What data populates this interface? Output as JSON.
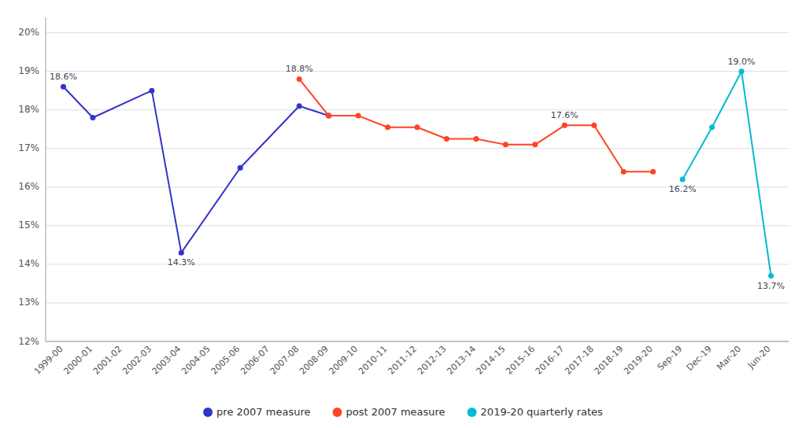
{
  "chart_data": {
    "type": "line",
    "categories": [
      "1999-00",
      "2000-01",
      "2001-02",
      "2002-03",
      "2003-04",
      "2004-05",
      "2005-06",
      "2006-07",
      "2007-08",
      "2008-09",
      "2009-10",
      "2010-11",
      "2011-12",
      "2012-13",
      "2013-14",
      "2014-15",
      "2015-16",
      "2016-17",
      "2017-18",
      "2018-19",
      "2019-20",
      "Sep-19",
      "Dec-19",
      "Mar-20",
      "Jun-20"
    ],
    "series": [
      {
        "name": "pre 2007 measure",
        "color": "#3333cc",
        "marker": "circle",
        "x": [
          "1999-00",
          "2000-01",
          "2002-03",
          "2003-04",
          "2005-06",
          "2007-08",
          "2008-09"
        ],
        "values": [
          18.6,
          17.8,
          18.5,
          14.3,
          16.5,
          18.1,
          17.85
        ]
      },
      {
        "name": "post 2007 measure",
        "color": "#ff4422",
        "marker": "circle",
        "x": [
          "2007-08",
          "2008-09",
          "2009-10",
          "2010-11",
          "2011-12",
          "2012-13",
          "2013-14",
          "2014-15",
          "2015-16",
          "2016-17",
          "2017-18",
          "2018-19",
          "2019-20"
        ],
        "values": [
          18.8,
          17.85,
          17.85,
          17.55,
          17.55,
          17.25,
          17.25,
          17.1,
          17.1,
          17.6,
          17.6,
          16.4,
          16.4
        ]
      },
      {
        "name": "2019-20 quarterly rates",
        "color": "#00bcd4",
        "marker": "circle",
        "x": [
          "Sep-19",
          "Dec-19",
          "Mar-20",
          "Jun-20"
        ],
        "values": [
          16.2,
          17.55,
          19.0,
          13.7
        ]
      }
    ],
    "ylim": [
      12.0,
      20.4
    ],
    "yticks": [
      {
        "value": 12,
        "label": "12%"
      },
      {
        "value": 13,
        "label": "13%"
      },
      {
        "value": 14,
        "label": "14%"
      },
      {
        "value": 15,
        "label": "15%"
      },
      {
        "value": 16,
        "label": "16%"
      },
      {
        "value": 17,
        "label": "17%"
      },
      {
        "value": 18,
        "label": "18%"
      },
      {
        "value": 19,
        "label": "19%"
      },
      {
        "value": 20,
        "label": "20%"
      }
    ],
    "grid": true,
    "legend": "bottom",
    "annotations": [
      {
        "text": "18.6%",
        "x": "1999-00",
        "y": 18.6
      },
      {
        "text": "14.3%",
        "x": "2003-04",
        "y": 14.3
      },
      {
        "text": "18.8%",
        "x": "2007-08",
        "y": 18.8
      },
      {
        "text": "17.6%",
        "x": "2016-17",
        "y": 17.6
      },
      {
        "text": "16.2%",
        "x": "Sep-19",
        "y": 16.2
      },
      {
        "text": "19.0%",
        "x": "Mar-20",
        "y": 19.0
      },
      {
        "text": "13.7%",
        "x": "Jun-20",
        "y": 13.7
      }
    ]
  }
}
